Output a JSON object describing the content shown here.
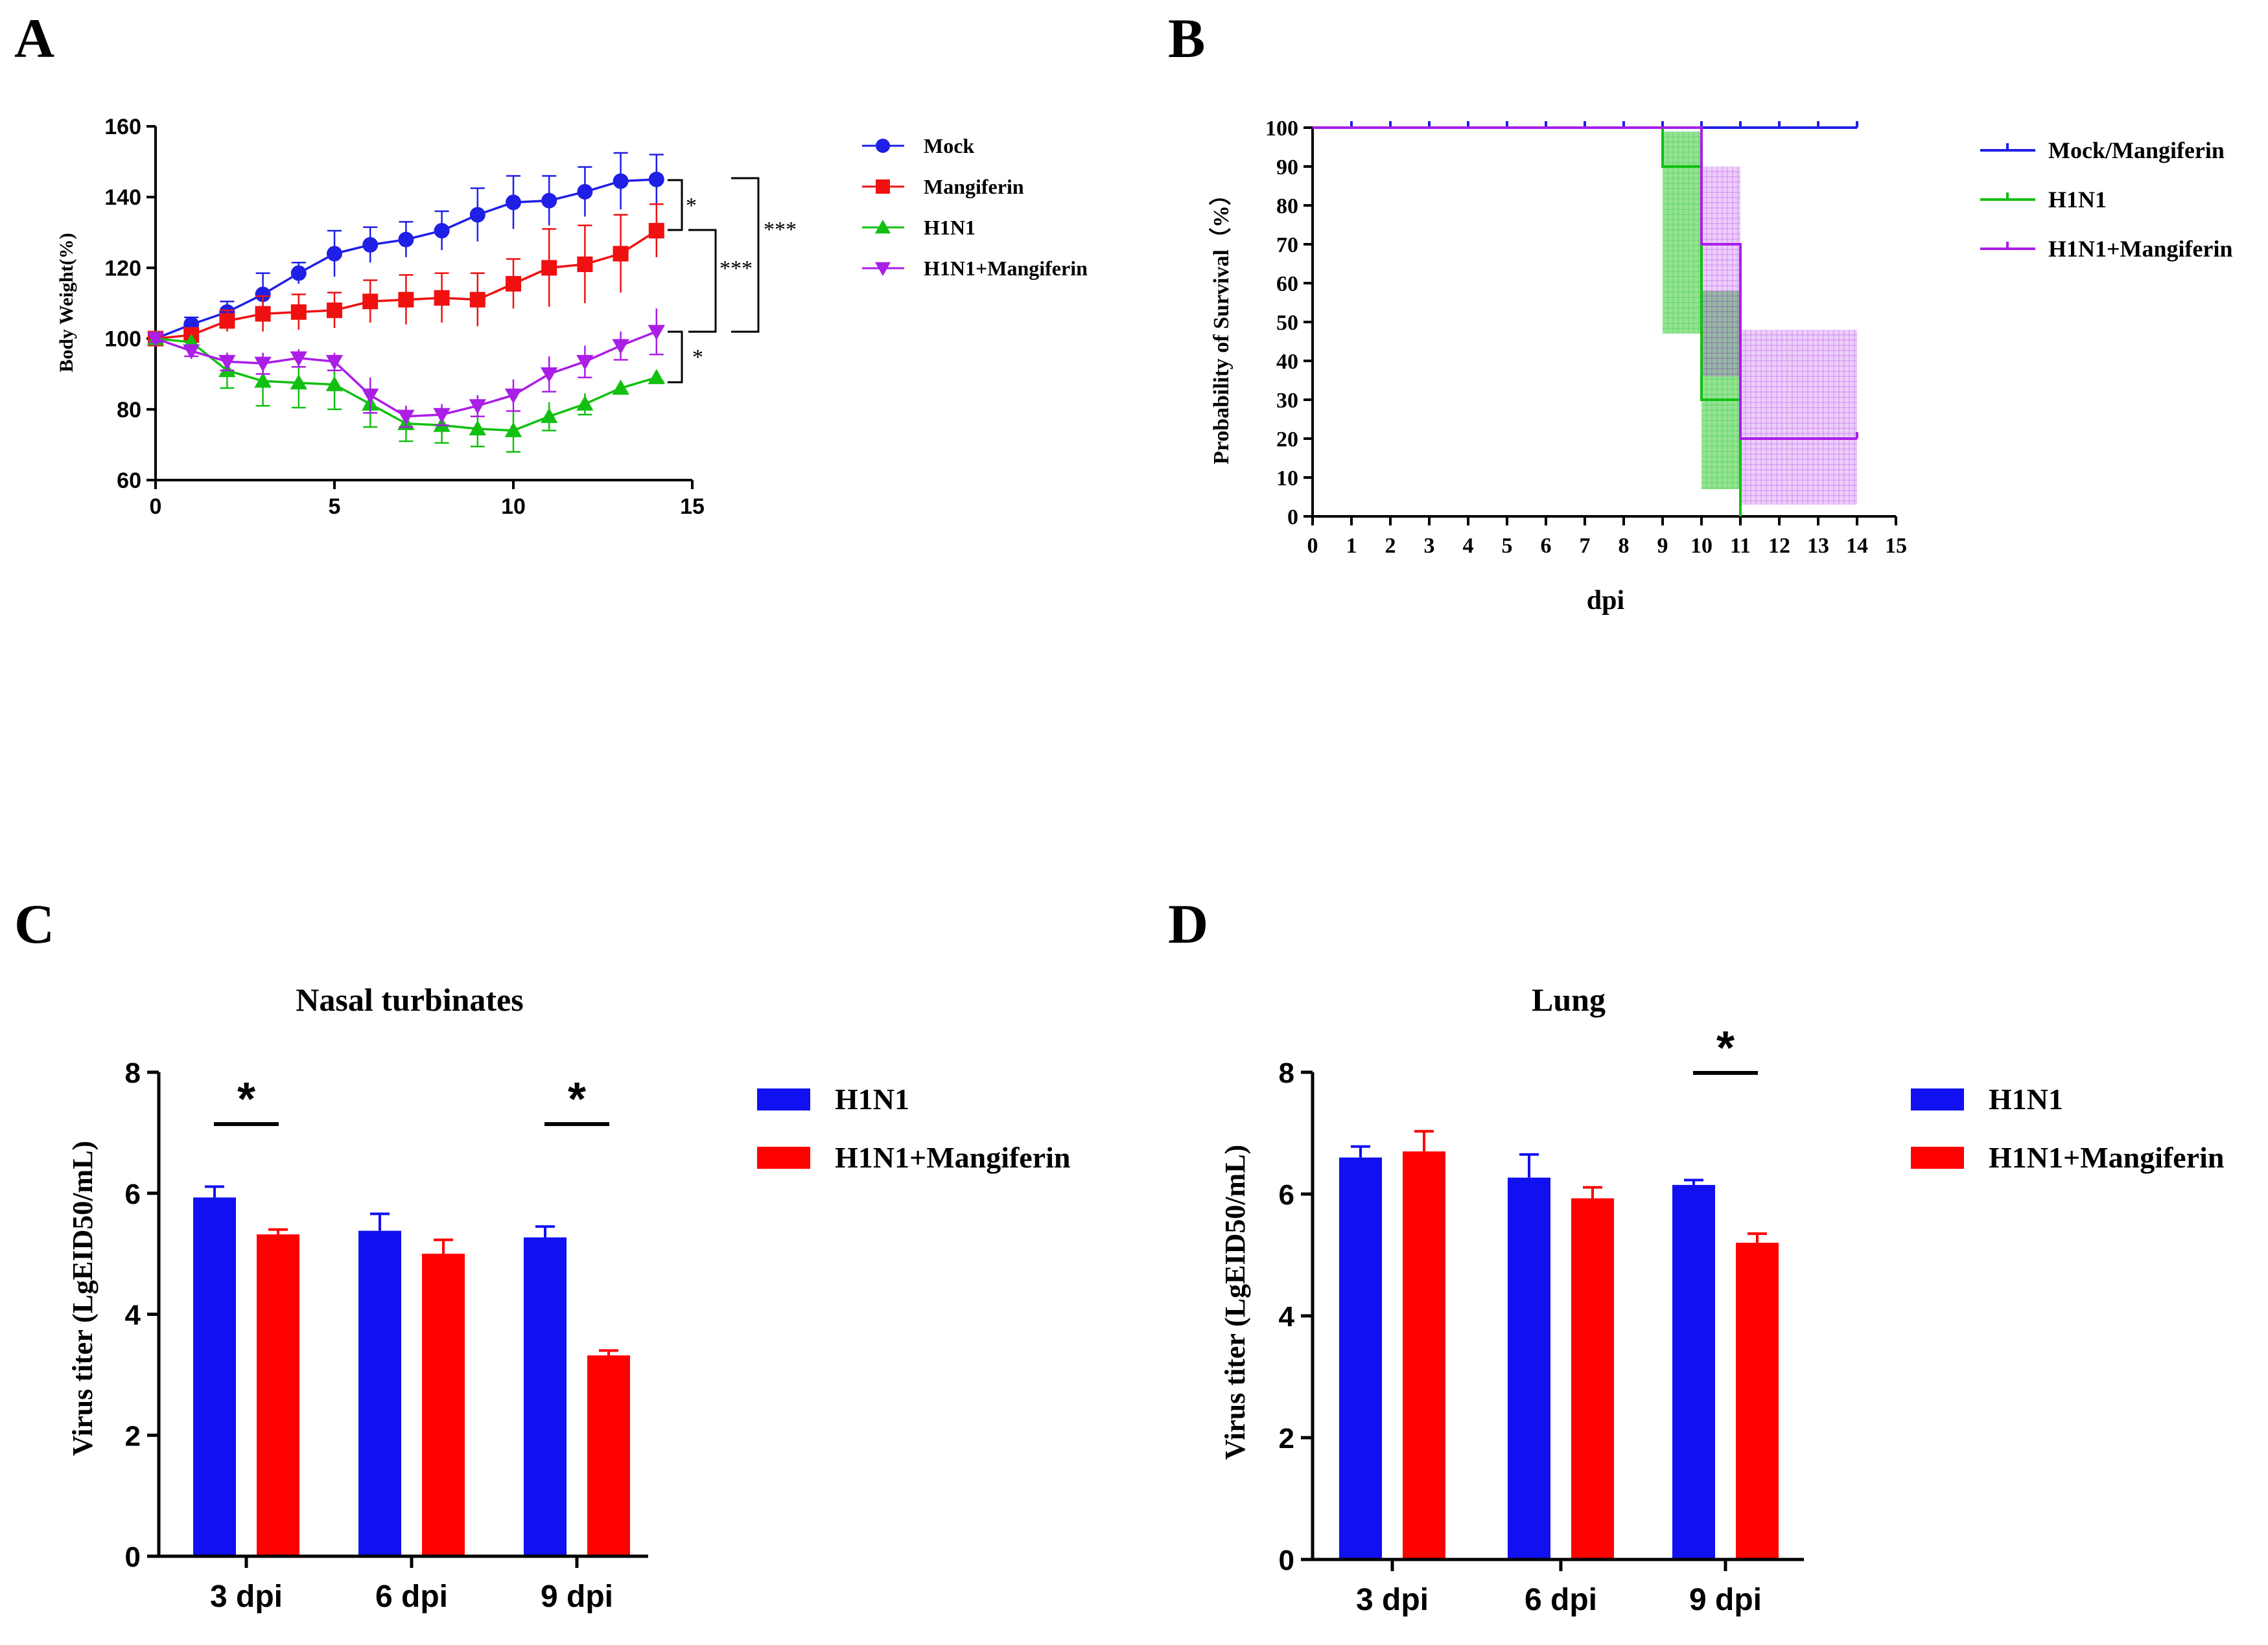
{
  "chart_data": [
    {
      "panel": "A",
      "type": "line",
      "title": "",
      "xlabel": "",
      "ylabel": "Body Weight(%)",
      "xlim": [
        0,
        15
      ],
      "ylim": [
        60,
        160
      ],
      "xticks": [
        0,
        5,
        10,
        15
      ],
      "yticks": [
        60,
        80,
        100,
        120,
        140,
        160
      ],
      "x": [
        0,
        1,
        2,
        3,
        4,
        5,
        6,
        7,
        8,
        9,
        10,
        11,
        12,
        13,
        14
      ],
      "series": [
        {
          "name": "Mock",
          "color": "#1f1fe6",
          "marker": "circle",
          "values": [
            100,
            104,
            107.5,
            112.5,
            118.5,
            124,
            126.5,
            128,
            130.5,
            135,
            138.5,
            139,
            141.5,
            144.5,
            145
          ],
          "errors": [
            1,
            2,
            3,
            6,
            3,
            6.5,
            5,
            5,
            5.5,
            7.5,
            7.5,
            7,
            7,
            8,
            7
          ]
        },
        {
          "name": "Mangiferin",
          "color": "#f01010",
          "marker": "square",
          "values": [
            100,
            101,
            105,
            107,
            107.5,
            108,
            110.5,
            111,
            111.5,
            111,
            115.5,
            120,
            121,
            124,
            130.5
          ],
          "errors": [
            1,
            2,
            3,
            5,
            5,
            5,
            6,
            7,
            7,
            7.5,
            7,
            11,
            11,
            11,
            7.5
          ]
        },
        {
          "name": "H1N1",
          "color": "#12c012",
          "marker": "triangle-up",
          "values": [
            100,
            99,
            91,
            88,
            87.5,
            87,
            81.5,
            76,
            75.5,
            74.5,
            74,
            78,
            81.5,
            86,
            89
          ],
          "errors": [
            1,
            1.5,
            5,
            7,
            7,
            7,
            6.5,
            5,
            5,
            5,
            6,
            4,
            3,
            1,
            1
          ]
        },
        {
          "name": "H1N1+Mangiferin",
          "color": "#aa1ee6",
          "marker": "triangle-down",
          "values": [
            100,
            96.5,
            93.5,
            93,
            94.5,
            93.5,
            84,
            78,
            78.5,
            81,
            84,
            90,
            93.5,
            98,
            102
          ],
          "errors": [
            1,
            1.5,
            2.5,
            3,
            2.5,
            2.5,
            5,
            3,
            3,
            3,
            4.5,
            5,
            4.5,
            4,
            6.5
          ]
        }
      ],
      "annotations": [
        "*",
        "***",
        "***",
        "*"
      ]
    },
    {
      "panel": "B",
      "type": "line",
      "title": "",
      "xlabel": "dpi",
      "ylabel": "Probability of Survival（%）",
      "xlim": [
        0,
        15
      ],
      "ylim": [
        0,
        100
      ],
      "xticks": [
        0,
        1,
        2,
        3,
        4,
        5,
        6,
        7,
        8,
        9,
        10,
        11,
        12,
        13,
        14,
        15
      ],
      "yticks": [
        0,
        10,
        20,
        30,
        40,
        50,
        60,
        70,
        80,
        90,
        100
      ],
      "series": [
        {
          "name": "Mock/Mangiferin",
          "color": "#1f1fe6",
          "steps": [
            [
              0,
              100
            ],
            [
              14,
              100
            ]
          ],
          "ci": []
        },
        {
          "name": "H1N1",
          "color": "#12c012",
          "steps": [
            [
              0,
              100
            ],
            [
              9,
              100
            ],
            [
              9,
              90
            ],
            [
              10,
              90
            ],
            [
              10,
              30
            ],
            [
              11,
              30
            ],
            [
              11,
              0
            ]
          ],
          "ci": [
            [
              9,
              10,
              47,
              99
            ],
            [
              10,
              11,
              7,
              58
            ]
          ]
        },
        {
          "name": "H1N1+Mangiferin",
          "color": "#aa1ee6",
          "steps": [
            [
              0,
              100
            ],
            [
              10,
              100
            ],
            [
              10,
              70
            ],
            [
              11,
              70
            ],
            [
              11,
              20
            ],
            [
              14,
              20
            ]
          ],
          "ci": [
            [
              10,
              11,
              36,
              90
            ],
            [
              11,
              14,
              3,
              48
            ]
          ]
        }
      ]
    },
    {
      "panel": "C",
      "type": "bar",
      "title": "Nasal turbinates",
      "xlabel": "",
      "ylabel": "Virus titer (LgEID50/mL)",
      "ylim": [
        0,
        8
      ],
      "yticks": [
        0,
        2,
        4,
        6,
        8
      ],
      "categories": [
        "3 dpi",
        "6 dpi",
        "9 dpi"
      ],
      "series": [
        {
          "name": "H1N1",
          "color": "#1010f0",
          "values": [
            5.93,
            5.38,
            5.27
          ],
          "errors": [
            0.18,
            0.28,
            0.18
          ]
        },
        {
          "name": "H1N1+Mangiferin",
          "color": "#ff0000",
          "values": [
            5.32,
            5.0,
            3.32
          ],
          "errors": [
            0.08,
            0.23,
            0.08
          ]
        }
      ],
      "significance": [
        {
          "category": "3 dpi",
          "label": "*"
        },
        {
          "category": "9 dpi",
          "label": "*"
        }
      ]
    },
    {
      "panel": "D",
      "type": "bar",
      "title": "Lung",
      "xlabel": "",
      "ylabel": "Virus titer (LgEID50/mL)",
      "ylim": [
        0,
        8
      ],
      "yticks": [
        0,
        2,
        4,
        6,
        8
      ],
      "categories": [
        "3 dpi",
        "6 dpi",
        "9 dpi"
      ],
      "series": [
        {
          "name": "H1N1",
          "color": "#1010f0",
          "values": [
            6.6,
            6.27,
            6.15
          ],
          "errors": [
            0.18,
            0.38,
            0.08
          ]
        },
        {
          "name": "H1N1+Mangiferin",
          "color": "#ff0000",
          "values": [
            6.7,
            5.93,
            5.2
          ],
          "errors": [
            0.33,
            0.18,
            0.15
          ]
        }
      ],
      "significance": [
        {
          "category": "9 dpi",
          "label": "*"
        }
      ]
    }
  ]
}
